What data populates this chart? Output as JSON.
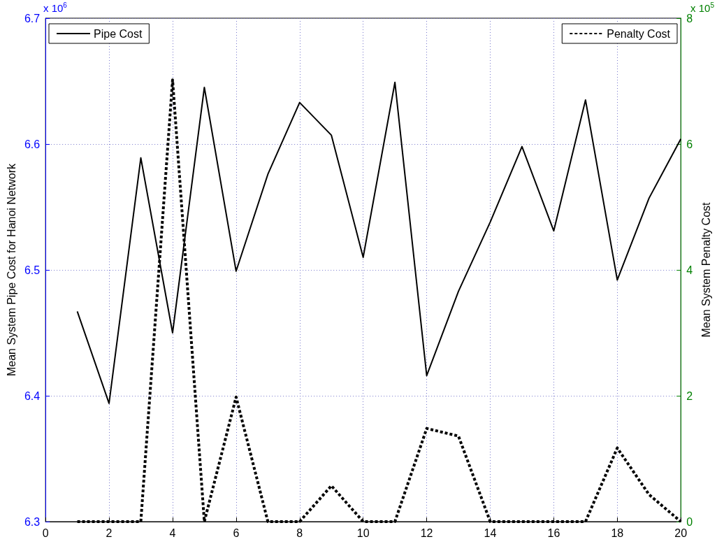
{
  "chart_data": {
    "type": "line",
    "ylabel": "Mean System Pipe Cost for Hanoi Network",
    "y2label": "Mean System Penalty Cost",
    "annotations": [
      "x 10$^{6}$",
      "x 10$^{5}$"
    ],
    "x": [
      1,
      2,
      3,
      4,
      5,
      6,
      7,
      8,
      9,
      10,
      11,
      12,
      13,
      14,
      15,
      16,
      17,
      18,
      19,
      20
    ],
    "series": [
      {
        "name": "Pipe Cost",
        "color": "#000000",
        "line_style": "solid",
        "values": [
          6.467,
          6.394,
          6.589,
          6.45,
          6.645,
          6.499,
          6.576,
          6.633,
          6.607,
          6.51,
          6.649,
          6.416,
          6.483,
          6.538,
          6.598,
          6.531,
          6.635,
          6.492,
          6.557,
          6.604
        ]
      },
      {
        "name": "Penalty Cost",
        "color": "#000000",
        "line_style": "dashed",
        "axis": "y2",
        "values": [
          0,
          0,
          0,
          7.02,
          0,
          1.98,
          0,
          0,
          0.57,
          0,
          0,
          1.48,
          1.36,
          0,
          0,
          0,
          0,
          1.17,
          0.43,
          0
        ]
      }
    ],
    "xlim": [
      0,
      20
    ],
    "xticks": [
      0,
      2,
      4,
      6,
      8,
      10,
      12,
      14,
      16,
      18,
      20
    ],
    "ylim": [
      6.3,
      6.7
    ],
    "yticks": [
      6.3,
      6.4,
      6.5,
      6.6,
      6.7
    ],
    "y2lim": [
      0,
      8
    ],
    "y2ticks": [
      0,
      2,
      4,
      6,
      8
    ],
    "grid": true,
    "legend": "top",
    "marker": "none"
  }
}
